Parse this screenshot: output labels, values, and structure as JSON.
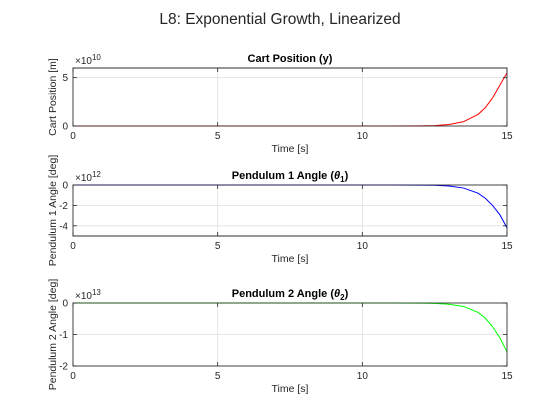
{
  "figure": {
    "title": "L8: Exponential Growth, Linearized"
  },
  "chart_data": [
    {
      "type": "line",
      "title": "Cart Position (y)",
      "title_main": "Cart Position (y)",
      "title_sub": "",
      "title_tail": "",
      "xlabel": "Time [s]",
      "ylabel": "Cart Position [m]",
      "exponent_label": "×10",
      "exponent_power": "10",
      "scale": 10000000000.0,
      "xlim": [
        0,
        15
      ],
      "ylim": [
        0,
        6
      ],
      "xticks": [
        0,
        5,
        10,
        15
      ],
      "xtick_labels": [
        "0",
        "5",
        "10",
        "15"
      ],
      "yticks": [
        0,
        5
      ],
      "ytick_labels": [
        "0",
        "5"
      ],
      "grid": true,
      "color": "#ff0000",
      "x": [
        0,
        10,
        11,
        12,
        12.5,
        13,
        13.5,
        14,
        14.25,
        14.5,
        14.75,
        15
      ],
      "y": [
        0,
        0,
        0.002,
        0.01,
        0.04,
        0.16,
        0.45,
        1.2,
        1.9,
        2.9,
        4.2,
        5.5
      ]
    },
    {
      "type": "line",
      "title": "Pendulum 1 Angle (θ1)",
      "title_main": "Pendulum 1 Angle (",
      "title_sub": "1",
      "title_tail": ")",
      "xlabel": "Time [s]",
      "ylabel": "Pendulum 1 Angle [deg]",
      "exponent_label": "×10",
      "exponent_power": "12",
      "scale": 1000000000000.0,
      "xlim": [
        0,
        15
      ],
      "ylim": [
        -5,
        0
      ],
      "xticks": [
        0,
        5,
        10,
        15
      ],
      "xtick_labels": [
        "0",
        "5",
        "10",
        "15"
      ],
      "yticks": [
        -4,
        -2,
        0
      ],
      "ytick_labels": [
        "-4",
        "-2",
        "0"
      ],
      "grid": true,
      "color": "#0000ff",
      "x": [
        0,
        10,
        11,
        12,
        12.5,
        13,
        13.5,
        14,
        14.25,
        14.5,
        14.75,
        15
      ],
      "y": [
        0,
        0,
        -0.002,
        -0.01,
        -0.03,
        -0.1,
        -0.3,
        -0.8,
        -1.3,
        -2.0,
        -2.9,
        -4.2
      ]
    },
    {
      "type": "line",
      "title": "Pendulum 2 Angle (θ2)",
      "title_main": "Pendulum 2 Angle (",
      "title_sub": "2",
      "title_tail": ")",
      "xlabel": "Time [s]",
      "ylabel": "Pendulum 2 Angle [deg]",
      "exponent_label": "×10",
      "exponent_power": "13",
      "scale": 10000000000000.0,
      "xlim": [
        0,
        15
      ],
      "ylim": [
        -2,
        0
      ],
      "xticks": [
        0,
        5,
        10,
        15
      ],
      "xtick_labels": [
        "0",
        "5",
        "10",
        "15"
      ],
      "yticks": [
        -2,
        -1,
        0
      ],
      "ytick_labels": [
        "-2",
        "-1",
        "0"
      ],
      "grid": true,
      "color": "#00ff00",
      "x": [
        0,
        10,
        11,
        12,
        12.5,
        13,
        13.5,
        14,
        14.25,
        14.5,
        14.75,
        15
      ],
      "y": [
        0,
        0,
        -0.001,
        -0.004,
        -0.012,
        -0.04,
        -0.11,
        -0.3,
        -0.48,
        -0.75,
        -1.1,
        -1.55
      ]
    }
  ]
}
